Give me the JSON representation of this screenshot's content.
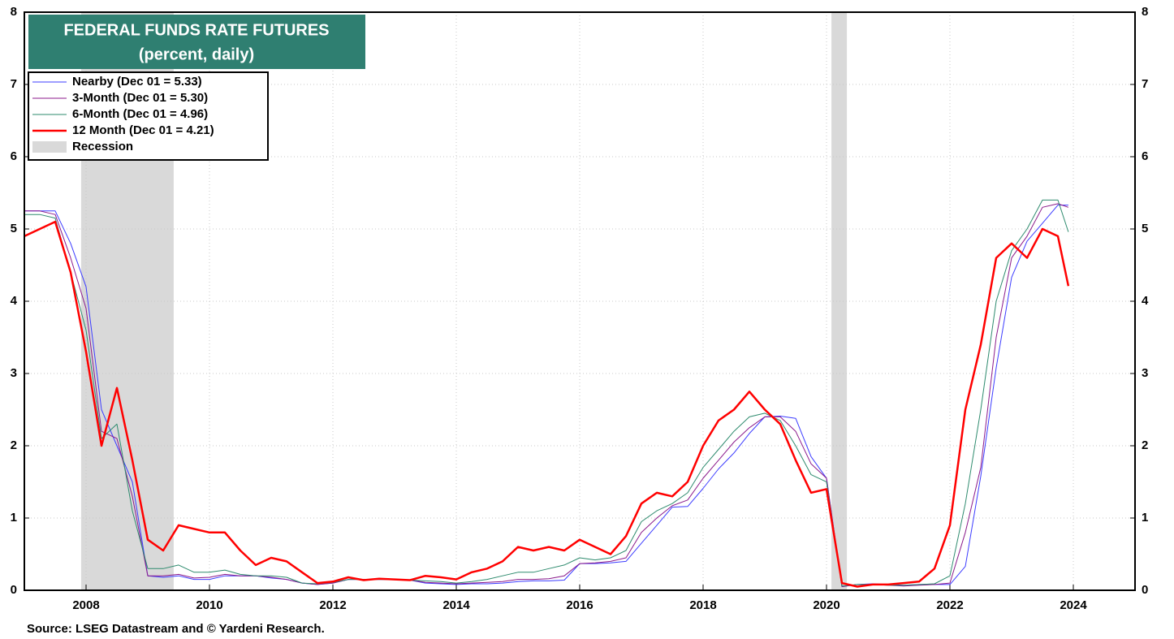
{
  "chart_data": {
    "type": "line",
    "title": "FEDERAL FUNDS RATE FUTURES",
    "subtitle": "(percent, daily)",
    "source": "Source: LSEG Datastream and © Yardeni Research.",
    "xlim": [
      2007,
      2025
    ],
    "xticks": [
      2008,
      2010,
      2012,
      2014,
      2016,
      2018,
      2020,
      2022,
      2024
    ],
    "ylim": [
      0,
      8
    ],
    "yticks": [
      0,
      1,
      2,
      3,
      4,
      5,
      6,
      7,
      8
    ],
    "y2lim": [
      0,
      8
    ],
    "y2ticks": [
      0,
      1,
      2,
      3,
      4,
      5,
      6,
      7,
      8
    ],
    "grid": true,
    "legend": "upper left",
    "recession_label": "Recession",
    "recession_color": "#d9d9d9",
    "recessions": [
      {
        "start": 2007.92,
        "end": 2009.42
      },
      {
        "start": 2020.08,
        "end": 2020.33
      }
    ],
    "x": [
      2007,
      2007.25,
      2007.5,
      2007.75,
      2008,
      2008.25,
      2008.5,
      2008.75,
      2009,
      2009.25,
      2009.5,
      2009.75,
      2010,
      2010.25,
      2010.5,
      2010.75,
      2011,
      2011.25,
      2011.5,
      2011.75,
      2012,
      2012.25,
      2012.5,
      2012.75,
      2013,
      2013.25,
      2013.5,
      2013.75,
      2014,
      2014.25,
      2014.5,
      2014.75,
      2015,
      2015.25,
      2015.5,
      2015.75,
      2016,
      2016.25,
      2016.5,
      2016.75,
      2017,
      2017.25,
      2017.5,
      2017.75,
      2018,
      2018.25,
      2018.5,
      2018.75,
      2019,
      2019.25,
      2019.5,
      2019.75,
      2020,
      2020.25,
      2020.5,
      2020.75,
      2021,
      2021.25,
      2021.5,
      2021.75,
      2022,
      2022.25,
      2022.5,
      2022.75,
      2023,
      2023.25,
      2023.5,
      2023.75,
      2023.92
    ],
    "series": [
      {
        "name": "Nearby (Dec 01 = 5.33)",
        "color": "#3c3cff",
        "width": 1,
        "values": [
          5.25,
          5.25,
          5.25,
          4.8,
          4.2,
          2.5,
          2.0,
          1.5,
          0.2,
          0.18,
          0.2,
          0.15,
          0.15,
          0.2,
          0.2,
          0.2,
          0.17,
          0.15,
          0.1,
          0.08,
          0.1,
          0.15,
          0.15,
          0.15,
          0.15,
          0.14,
          0.1,
          0.09,
          0.08,
          0.09,
          0.09,
          0.1,
          0.12,
          0.13,
          0.13,
          0.14,
          0.37,
          0.37,
          0.38,
          0.4,
          0.65,
          0.9,
          1.15,
          1.16,
          1.41,
          1.68,
          1.9,
          2.17,
          2.4,
          2.41,
          2.38,
          1.85,
          1.55,
          0.05,
          0.08,
          0.09,
          0.08,
          0.07,
          0.08,
          0.08,
          0.08,
          0.33,
          1.58,
          3.08,
          4.33,
          4.83,
          5.08,
          5.33,
          5.33
        ]
      },
      {
        "name": "3-Month (Dec 01 = 5.30)",
        "color": "#8b1a8b",
        "width": 1,
        "values": [
          5.25,
          5.25,
          5.2,
          4.6,
          3.9,
          2.2,
          2.1,
          1.3,
          0.2,
          0.2,
          0.22,
          0.17,
          0.18,
          0.22,
          0.2,
          0.2,
          0.18,
          0.15,
          0.1,
          0.08,
          0.1,
          0.15,
          0.15,
          0.15,
          0.15,
          0.14,
          0.11,
          0.1,
          0.09,
          0.1,
          0.11,
          0.12,
          0.15,
          0.15,
          0.16,
          0.2,
          0.37,
          0.38,
          0.4,
          0.45,
          0.8,
          1.0,
          1.17,
          1.25,
          1.55,
          1.8,
          2.05,
          2.25,
          2.4,
          2.4,
          2.2,
          1.75,
          1.55,
          0.05,
          0.08,
          0.08,
          0.07,
          0.06,
          0.07,
          0.08,
          0.1,
          0.8,
          1.7,
          3.5,
          4.6,
          4.9,
          5.3,
          5.35,
          5.3
        ]
      },
      {
        "name": "6-Month (Dec 01 = 4.96)",
        "color": "#2e8b6e",
        "width": 1,
        "values": [
          5.2,
          5.2,
          5.15,
          4.4,
          3.6,
          2.1,
          2.3,
          1.1,
          0.3,
          0.3,
          0.35,
          0.25,
          0.25,
          0.28,
          0.22,
          0.2,
          0.2,
          0.18,
          0.1,
          0.09,
          0.11,
          0.15,
          0.15,
          0.15,
          0.15,
          0.14,
          0.13,
          0.12,
          0.1,
          0.12,
          0.15,
          0.2,
          0.25,
          0.25,
          0.3,
          0.35,
          0.45,
          0.42,
          0.45,
          0.55,
          0.95,
          1.1,
          1.2,
          1.35,
          1.7,
          1.95,
          2.2,
          2.4,
          2.45,
          2.35,
          2.0,
          1.6,
          1.5,
          0.06,
          0.08,
          0.08,
          0.07,
          0.07,
          0.08,
          0.09,
          0.2,
          1.2,
          2.5,
          4.0,
          4.7,
          5.0,
          5.4,
          5.4,
          4.96
        ]
      },
      {
        "name": "12 Month (Dec 01 = 4.21)",
        "color": "#ff0000",
        "width": 2.5,
        "values": [
          4.9,
          5.0,
          5.1,
          4.4,
          3.3,
          2.0,
          2.8,
          1.8,
          0.7,
          0.55,
          0.9,
          0.85,
          0.8,
          0.8,
          0.55,
          0.35,
          0.45,
          0.4,
          0.25,
          0.1,
          0.12,
          0.18,
          0.14,
          0.16,
          0.15,
          0.14,
          0.2,
          0.18,
          0.15,
          0.25,
          0.3,
          0.4,
          0.6,
          0.55,
          0.6,
          0.55,
          0.7,
          0.6,
          0.5,
          0.75,
          1.2,
          1.35,
          1.3,
          1.5,
          2.0,
          2.35,
          2.5,
          2.75,
          2.5,
          2.3,
          1.8,
          1.35,
          1.4,
          0.1,
          0.05,
          0.08,
          0.08,
          0.1,
          0.12,
          0.3,
          0.9,
          2.5,
          3.4,
          4.6,
          4.8,
          4.6,
          5.0,
          4.9,
          4.21
        ]
      }
    ]
  }
}
